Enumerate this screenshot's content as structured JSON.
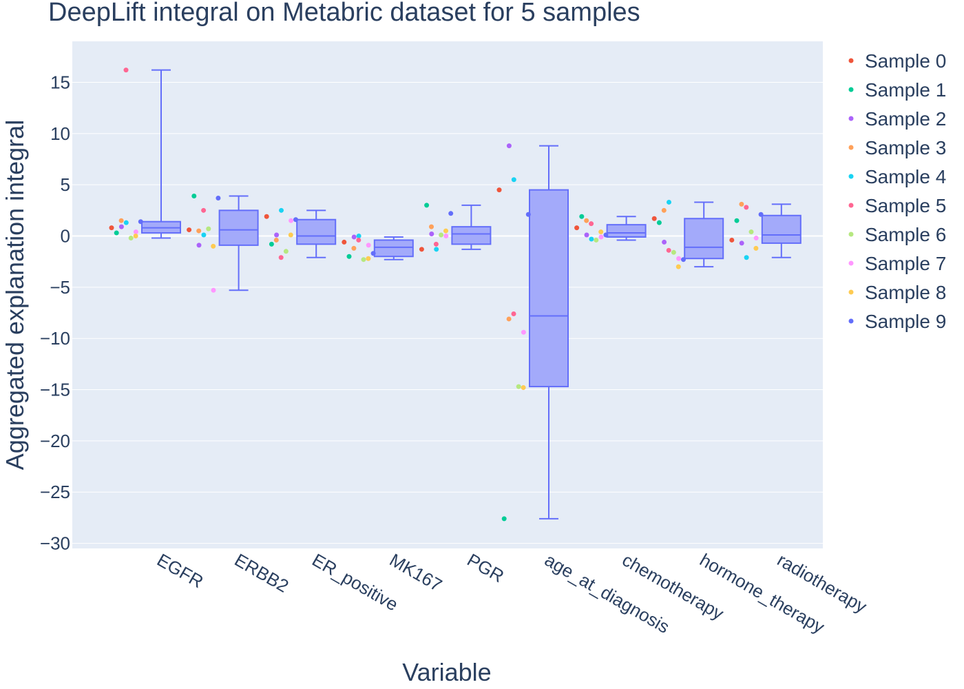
{
  "chart_data": {
    "type": "box",
    "title": "DeepLift integral on Metabric dataset for 5 samples",
    "xlabel": "Variable",
    "ylabel": "Aggregated explanation integral",
    "ylim": [
      -30.5,
      19
    ],
    "yticks": [
      15,
      10,
      5,
      0,
      -5,
      -10,
      -15,
      -20,
      -25,
      -30
    ],
    "ytick_labels": [
      "15",
      "10",
      "5",
      "0",
      "−5",
      "−10",
      "−15",
      "−20",
      "−25",
      "−30"
    ],
    "grid": true,
    "legend_position": "right",
    "colors": {
      "plot_bg": "#e5ecf6",
      "grid": "#ffffff",
      "box_line": "#636efa",
      "box_fill": "#a3aafa",
      "text": "#2a3f5f"
    },
    "categories": [
      "EGFR",
      "ERBB2",
      "ER_positive",
      "MK167",
      "PGR",
      "age_at_diagnosis",
      "chemotherapy",
      "hormone_therapy",
      "radiotherapy"
    ],
    "box_stats": [
      {
        "category": "EGFR",
        "min": -0.2,
        "q1": 0.3,
        "median": 0.8,
        "q3": 1.4,
        "max": 16.2
      },
      {
        "category": "ERBB2",
        "min": -5.3,
        "q1": -0.9,
        "median": 0.6,
        "q3": 2.5,
        "max": 3.9
      },
      {
        "category": "ER_positive",
        "min": -2.1,
        "q1": -0.8,
        "median": 0.0,
        "q3": 1.6,
        "max": 2.5
      },
      {
        "category": "MK167",
        "min": -2.3,
        "q1": -2.0,
        "median": -1.1,
        "q3": -0.4,
        "max": -0.1
      },
      {
        "category": "PGR",
        "min": -1.3,
        "q1": -0.8,
        "median": 0.2,
        "q3": 0.9,
        "max": 3.0
      },
      {
        "category": "age_at_diagnosis",
        "min": -27.6,
        "q1": -14.7,
        "median": -7.8,
        "q3": 4.5,
        "max": 8.8
      },
      {
        "category": "chemotherapy",
        "min": -0.4,
        "q1": -0.1,
        "median": 0.3,
        "q3": 1.1,
        "max": 1.9
      },
      {
        "category": "hormone_therapy",
        "min": -3.0,
        "q1": -2.2,
        "median": -1.1,
        "q3": 1.7,
        "max": 3.3
      },
      {
        "category": "radiotherapy",
        "min": -2.1,
        "q1": -0.7,
        "median": 0.1,
        "q3": 2.0,
        "max": 3.1
      }
    ],
    "series": [
      {
        "name": "Sample 0",
        "color": "#ef553b",
        "values": [
          0.8,
          0.6,
          1.9,
          -0.6,
          -1.3,
          4.5,
          0.8,
          1.7,
          -0.4
        ]
      },
      {
        "name": "Sample 1",
        "color": "#00cc96",
        "values": [
          0.3,
          3.9,
          -0.8,
          -2.0,
          3.0,
          -27.6,
          1.9,
          1.3,
          1.5
        ]
      },
      {
        "name": "Sample 2",
        "color": "#ab63fa",
        "values": [
          0.9,
          -0.9,
          0.1,
          -0.1,
          0.2,
          8.8,
          0.1,
          -0.6,
          -0.7
        ]
      },
      {
        "name": "Sample 3",
        "color": "#ffa15a",
        "values": [
          1.5,
          0.5,
          -0.4,
          -1.2,
          0.9,
          -8.1,
          1.5,
          2.5,
          3.1
        ]
      },
      {
        "name": "Sample 4",
        "color": "#19d3f3",
        "values": [
          1.3,
          0.1,
          2.5,
          0.0,
          -1.3,
          5.5,
          -0.3,
          3.3,
          -2.1
        ]
      },
      {
        "name": "Sample 5",
        "color": "#ff6692",
        "values": [
          16.2,
          2.5,
          -2.1,
          -0.4,
          -0.8,
          -7.6,
          1.2,
          -1.4,
          2.8
        ]
      },
      {
        "name": "Sample 6",
        "color": "#b6e880",
        "values": [
          -0.2,
          0.7,
          -1.5,
          -2.3,
          0.1,
          -14.7,
          -0.4,
          -1.6,
          0.4
        ]
      },
      {
        "name": "Sample 7",
        "color": "#ff97ff",
        "values": [
          0.4,
          -5.3,
          1.5,
          -0.9,
          0.0,
          -9.4,
          -0.1,
          -2.2,
          -0.2
        ]
      },
      {
        "name": "Sample 8",
        "color": "#fecb52",
        "values": [
          0.0,
          -1.0,
          0.1,
          -2.2,
          0.5,
          -14.8,
          0.4,
          -3.0,
          -1.2
        ]
      },
      {
        "name": "Sample 9",
        "color": "#636efa",
        "values": [
          1.4,
          3.7,
          1.6,
          -1.7,
          2.2,
          2.1,
          0.1,
          -2.3,
          2.1
        ]
      }
    ]
  }
}
